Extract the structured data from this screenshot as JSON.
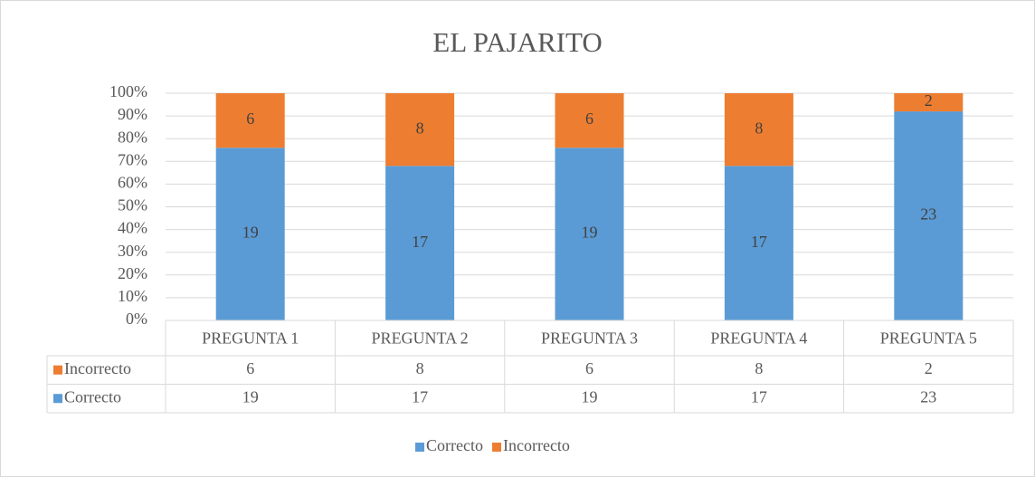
{
  "chart_data": {
    "type": "bar",
    "stacking": "percent",
    "title": "EL PAJARITO",
    "categories": [
      "PREGUNTA 1",
      "PREGUNTA 2",
      "PREGUNTA 3",
      "PREGUNTA 4",
      "PREGUNTA 5"
    ],
    "series": [
      {
        "name": "Correcto",
        "color": "#5b9bd5",
        "values": [
          19,
          17,
          19,
          17,
          23
        ]
      },
      {
        "name": "Incorrecto",
        "color": "#ed7d31",
        "values": [
          6,
          8,
          6,
          8,
          2
        ]
      }
    ],
    "ylim": [
      0,
      100
    ],
    "yticks": [
      {
        "value": 0,
        "label": "0%"
      },
      {
        "value": 10,
        "label": "10%"
      },
      {
        "value": 20,
        "label": "20%"
      },
      {
        "value": 30,
        "label": "30%"
      },
      {
        "value": 40,
        "label": "40%"
      },
      {
        "value": 50,
        "label": "50%"
      },
      {
        "value": 60,
        "label": "60%"
      },
      {
        "value": 70,
        "label": "70%"
      },
      {
        "value": 80,
        "label": "80%"
      },
      {
        "value": 90,
        "label": "90%"
      },
      {
        "value": 100,
        "label": "100%"
      }
    ],
    "grid": true,
    "data_table": true,
    "legend": "bottom"
  }
}
